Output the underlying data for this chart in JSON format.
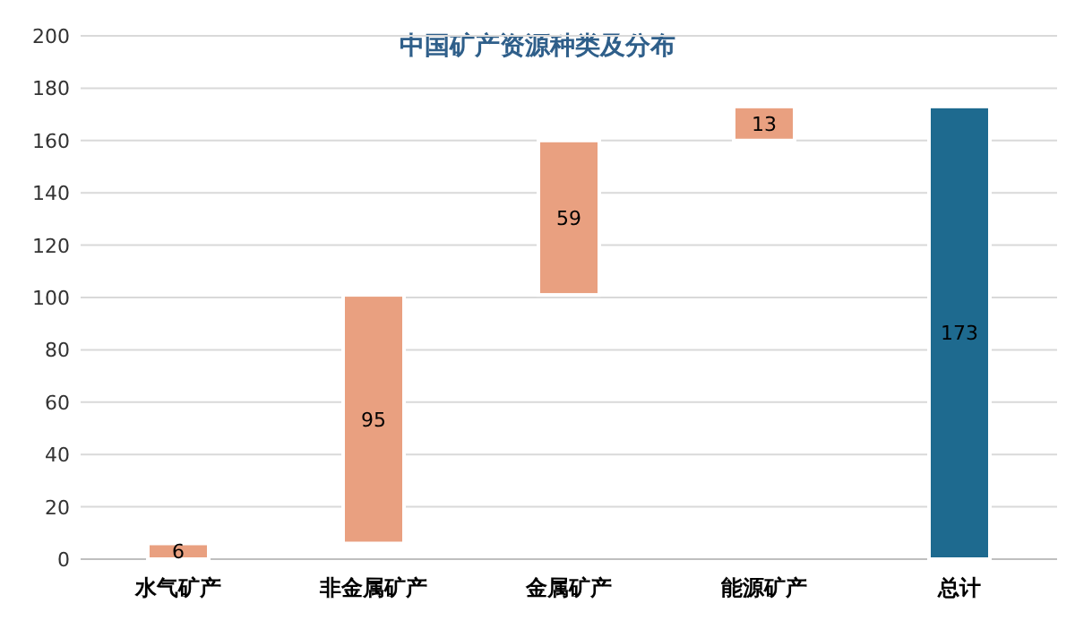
{
  "chart_data": {
    "type": "bar",
    "title": "中国矿产资源种类及分布",
    "categories": [
      "水气矿产",
      "非金属矿产",
      "金属矿产",
      "能源矿产",
      "总计"
    ],
    "values": [
      6,
      95,
      59,
      13,
      173
    ],
    "base": [
      0,
      6,
      101,
      160,
      0
    ],
    "colors": [
      "#e9a080",
      "#e9a080",
      "#e9a080",
      "#e9a080",
      "#1e6a8f"
    ],
    "ylim": [
      0,
      200
    ],
    "yticks": [
      0,
      20,
      40,
      60,
      80,
      100,
      120,
      140,
      160,
      180,
      200
    ],
    "grid": "y",
    "data_labels": true
  }
}
